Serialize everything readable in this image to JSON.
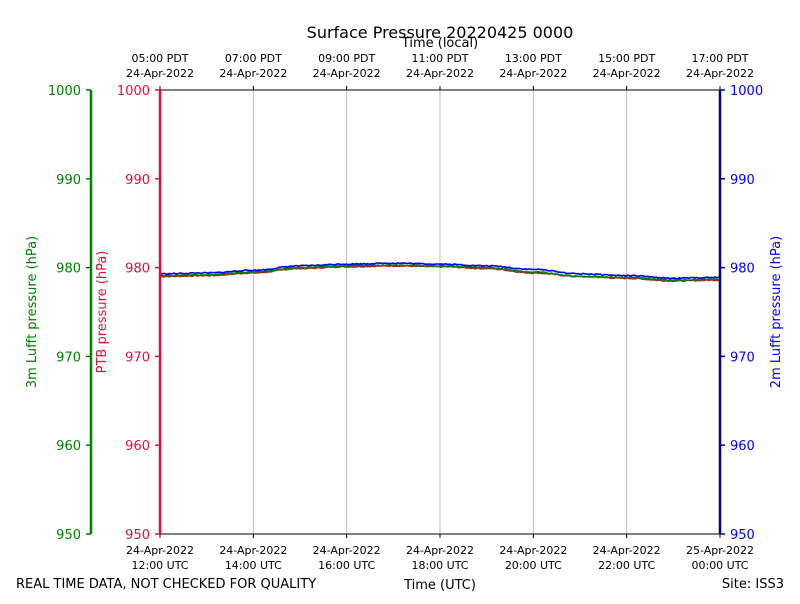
{
  "chart_data": {
    "type": "line",
    "title": "Surface Pressure 20220425 0000",
    "top_axis_label": "Time (local)",
    "xlabel": "Time (UTC)",
    "left_outer_ylabel": "3m Lufft pressure (hPa)",
    "left_inner_ylabel": "PTB pressure (hPa)",
    "right_ylabel": "2m Lufft pressure (hPa)",
    "ylim": [
      950,
      1000
    ],
    "y_ticks": [
      "950",
      "960",
      "970",
      "980",
      "990",
      "1000"
    ],
    "x_unit": "hours since 24-Apr-2022 12:00 UTC",
    "xlim": [
      0,
      12
    ],
    "x_ticks_utc": [
      {
        "x": 0,
        "line1": "24-Apr-2022",
        "line2": "12:00 UTC"
      },
      {
        "x": 2,
        "line1": "24-Apr-2022",
        "line2": "14:00 UTC"
      },
      {
        "x": 4,
        "line1": "24-Apr-2022",
        "line2": "16:00 UTC"
      },
      {
        "x": 6,
        "line1": "24-Apr-2022",
        "line2": "18:00 UTC"
      },
      {
        "x": 8,
        "line1": "24-Apr-2022",
        "line2": "20:00 UTC"
      },
      {
        "x": 10,
        "line1": "24-Apr-2022",
        "line2": "22:00 UTC"
      },
      {
        "x": 12,
        "line1": "25-Apr-2022",
        "line2": "00:00 UTC"
      }
    ],
    "x_ticks_local": [
      {
        "x": 0,
        "line1": "05:00 PDT",
        "line2": "24-Apr-2022"
      },
      {
        "x": 2,
        "line1": "07:00 PDT",
        "line2": "24-Apr-2022"
      },
      {
        "x": 4,
        "line1": "09:00 PDT",
        "line2": "24-Apr-2022"
      },
      {
        "x": 6,
        "line1": "11:00 PDT",
        "line2": "24-Apr-2022"
      },
      {
        "x": 8,
        "line1": "13:00 PDT",
        "line2": "24-Apr-2022"
      },
      {
        "x": 10,
        "line1": "15:00 PDT",
        "line2": "24-Apr-2022"
      },
      {
        "x": 12,
        "line1": "17:00 PDT",
        "line2": "24-Apr-2022"
      }
    ],
    "grid": "vertical",
    "series": [
      {
        "name": "PTB pressure",
        "color": "#b22222",
        "x": [
          0,
          1,
          2,
          3,
          4,
          5,
          6,
          7,
          8,
          9,
          10,
          11,
          12
        ],
        "values": [
          979.0,
          979.1,
          979.4,
          979.9,
          980.1,
          980.2,
          980.1,
          979.9,
          979.4,
          979.0,
          978.8,
          978.5,
          978.6
        ]
      },
      {
        "name": "3m Lufft pressure",
        "color": "#008000",
        "x": [
          0,
          1,
          2,
          3,
          4,
          5,
          6,
          7,
          8,
          9,
          10,
          11,
          12
        ],
        "values": [
          979.1,
          979.2,
          979.5,
          980.0,
          980.2,
          980.3,
          980.2,
          980.0,
          979.5,
          979.0,
          978.9,
          978.6,
          978.7
        ]
      },
      {
        "name": "2m Lufft pressure",
        "color": "#0000ff",
        "x": [
          0,
          1,
          2,
          3,
          4,
          5,
          6,
          7,
          8,
          9,
          10,
          11,
          12
        ],
        "values": [
          979.3,
          979.4,
          979.7,
          980.2,
          980.4,
          980.5,
          980.4,
          980.2,
          979.8,
          979.3,
          979.1,
          978.8,
          978.9
        ]
      }
    ],
    "colors": {
      "outer_left_axis": "#008000",
      "inner_left_axis": "#dc143c",
      "right_axis": "#00008b",
      "right_labels": "#0000ff"
    }
  },
  "footer": {
    "left": "REAL TIME DATA, NOT CHECKED FOR QUALITY",
    "right": "Site: ISS3"
  }
}
